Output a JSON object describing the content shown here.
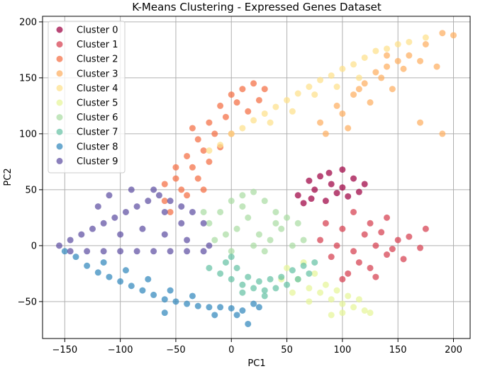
{
  "chart_data": {
    "type": "scatter",
    "title": "K-Means Clustering - Expressed Genes Dataset",
    "xlabel": "PC1",
    "ylabel": "PC2",
    "xlim": [
      -170,
      215
    ],
    "ylim": [
      -83,
      205
    ],
    "xticks": [
      -150,
      -100,
      -50,
      0,
      50,
      100,
      150,
      200
    ],
    "yticks": [
      -50,
      0,
      50,
      100,
      150,
      200
    ],
    "grid": true,
    "legend_position": "top-left",
    "series": [
      {
        "name": "Cluster 0",
        "color": "#9e0142",
        "points": [
          [
            60,
            45
          ],
          [
            75,
            50
          ],
          [
            90,
            55
          ],
          [
            100,
            52
          ],
          [
            110,
            60
          ],
          [
            85,
            40
          ],
          [
            70,
            58
          ],
          [
            95,
            47
          ],
          [
            105,
            44
          ],
          [
            80,
            62
          ],
          [
            65,
            38
          ],
          [
            115,
            48
          ],
          [
            120,
            55
          ],
          [
            88,
            65
          ],
          [
            72,
            42
          ],
          [
            100,
            68
          ]
        ]
      },
      {
        "name": "Cluster 1",
        "color": "#d53e4f",
        "points": [
          [
            80,
            5
          ],
          [
            95,
            0
          ],
          [
            110,
            -5
          ],
          [
            120,
            10
          ],
          [
            130,
            0
          ],
          [
            140,
            -8
          ],
          [
            150,
            5
          ],
          [
            100,
            15
          ],
          [
            115,
            -15
          ],
          [
            125,
            20
          ],
          [
            135,
            12
          ],
          [
            145,
            -3
          ],
          [
            160,
            8
          ],
          [
            170,
            -2
          ],
          [
            105,
            -25
          ],
          [
            90,
            -10
          ],
          [
            125,
            -20
          ],
          [
            155,
            -12
          ],
          [
            175,
            15
          ],
          [
            140,
            25
          ],
          [
            110,
            30
          ],
          [
            85,
            20
          ],
          [
            130,
            -28
          ],
          [
            100,
            -30
          ]
        ]
      },
      {
        "name": "Cluster 2",
        "color": "#f46d43",
        "points": [
          [
            -60,
            40
          ],
          [
            -50,
            60
          ],
          [
            -40,
            80
          ],
          [
            -30,
            95
          ],
          [
            -20,
            110
          ],
          [
            -10,
            125
          ],
          [
            0,
            135
          ],
          [
            10,
            140
          ],
          [
            20,
            145
          ],
          [
            -45,
            50
          ],
          [
            -35,
            70
          ],
          [
            -25,
            85
          ],
          [
            -15,
            100
          ],
          [
            -5,
            115
          ],
          [
            5,
            128
          ],
          [
            -55,
            30
          ],
          [
            -40,
            45
          ],
          [
            -30,
            60
          ],
          [
            -20,
            75
          ],
          [
            -10,
            88
          ],
          [
            0,
            100
          ],
          [
            15,
            120
          ],
          [
            25,
            130
          ],
          [
            -50,
            70
          ],
          [
            -60,
            55
          ],
          [
            -35,
            105
          ],
          [
            30,
            140
          ],
          [
            -25,
            50
          ]
        ]
      },
      {
        "name": "Cluster 3",
        "color": "#fdae61",
        "points": [
          [
            80,
            110
          ],
          [
            95,
            125
          ],
          [
            110,
            135
          ],
          [
            120,
            145
          ],
          [
            130,
            155
          ],
          [
            140,
            160
          ],
          [
            150,
            165
          ],
          [
            160,
            170
          ],
          [
            175,
            180
          ],
          [
            190,
            190
          ],
          [
            200,
            188
          ],
          [
            100,
            118
          ],
          [
            115,
            140
          ],
          [
            125,
            128
          ],
          [
            135,
            150
          ],
          [
            145,
            140
          ],
          [
            155,
            158
          ],
          [
            170,
            165
          ],
          [
            85,
            100
          ],
          [
            105,
            105
          ],
          [
            140,
            170
          ],
          [
            185,
            160
          ],
          [
            190,
            100
          ],
          [
            170,
            110
          ]
        ]
      },
      {
        "name": "Cluster 4",
        "color": "#fee08b",
        "points": [
          [
            -20,
            85
          ],
          [
            -10,
            90
          ],
          [
            0,
            100
          ],
          [
            10,
            105
          ],
          [
            20,
            112
          ],
          [
            30,
            118
          ],
          [
            40,
            124
          ],
          [
            50,
            130
          ],
          [
            60,
            136
          ],
          [
            70,
            142
          ],
          [
            80,
            148
          ],
          [
            90,
            152
          ],
          [
            100,
            158
          ],
          [
            110,
            162
          ],
          [
            120,
            168
          ],
          [
            130,
            174
          ],
          [
            140,
            176
          ],
          [
            150,
            180
          ],
          [
            160,
            182
          ],
          [
            175,
            186
          ],
          [
            55,
            120
          ],
          [
            75,
            135
          ],
          [
            95,
            142
          ],
          [
            115,
            150
          ],
          [
            35,
            110
          ]
        ]
      },
      {
        "name": "Cluster 5",
        "color": "#e6f598",
        "points": [
          [
            50,
            -20
          ],
          [
            60,
            -30
          ],
          [
            70,
            -38
          ],
          [
            80,
            -42
          ],
          [
            90,
            -48
          ],
          [
            100,
            -52
          ],
          [
            110,
            -55
          ],
          [
            120,
            -58
          ],
          [
            75,
            -25
          ],
          [
            85,
            -35
          ],
          [
            95,
            -40
          ],
          [
            105,
            -45
          ],
          [
            65,
            -15
          ],
          [
            115,
            -48
          ],
          [
            125,
            -60
          ],
          [
            70,
            -50
          ],
          [
            90,
            -62
          ],
          [
            55,
            -42
          ],
          [
            45,
            -30
          ],
          [
            100,
            -60
          ]
        ]
      },
      {
        "name": "Cluster 6",
        "color": "#abdda4",
        "points": [
          [
            -20,
            20
          ],
          [
            -10,
            30
          ],
          [
            0,
            40
          ],
          [
            10,
            45
          ],
          [
            20,
            48
          ],
          [
            30,
            40
          ],
          [
            40,
            30
          ],
          [
            50,
            25
          ],
          [
            60,
            20
          ],
          [
            -5,
            10
          ],
          [
            5,
            15
          ],
          [
            15,
            25
          ],
          [
            25,
            10
          ],
          [
            35,
            5
          ],
          [
            45,
            15
          ],
          [
            55,
            0
          ],
          [
            65,
            5
          ],
          [
            0,
            -5
          ],
          [
            -15,
            5
          ],
          [
            20,
            0
          ],
          [
            30,
            -5
          ],
          [
            40,
            20
          ],
          [
            10,
            35
          ],
          [
            -25,
            30
          ]
        ]
      },
      {
        "name": "Cluster 7",
        "color": "#66c2a5",
        "points": [
          [
            -20,
            -20
          ],
          [
            -10,
            -25
          ],
          [
            0,
            -30
          ],
          [
            10,
            -35
          ],
          [
            20,
            -38
          ],
          [
            30,
            -40
          ],
          [
            40,
            -38
          ],
          [
            50,
            -35
          ],
          [
            60,
            -30
          ],
          [
            70,
            -25
          ],
          [
            -5,
            -15
          ],
          [
            5,
            -20
          ],
          [
            15,
            -28
          ],
          [
            25,
            -32
          ],
          [
            35,
            -30
          ],
          [
            45,
            -28
          ],
          [
            55,
            -22
          ],
          [
            65,
            -18
          ],
          [
            75,
            -15
          ],
          [
            10,
            -42
          ],
          [
            30,
            -45
          ],
          [
            0,
            -10
          ]
        ]
      },
      {
        "name": "Cluster 8",
        "color": "#3288bd",
        "points": [
          [
            -150,
            -5
          ],
          [
            -140,
            -10
          ],
          [
            -130,
            -18
          ],
          [
            -120,
            -24
          ],
          [
            -110,
            -28
          ],
          [
            -100,
            -32
          ],
          [
            -90,
            -36
          ],
          [
            -80,
            -40
          ],
          [
            -70,
            -44
          ],
          [
            -60,
            -48
          ],
          [
            -50,
            -50
          ],
          [
            -40,
            -52
          ],
          [
            -30,
            -54
          ],
          [
            -20,
            -55
          ],
          [
            -10,
            -55
          ],
          [
            0,
            -56
          ],
          [
            10,
            -58
          ],
          [
            20,
            -52
          ],
          [
            -55,
            -40
          ],
          [
            -75,
            -30
          ],
          [
            -95,
            -22
          ],
          [
            -115,
            -15
          ],
          [
            -35,
            -45
          ],
          [
            -15,
            -62
          ],
          [
            5,
            -62
          ],
          [
            15,
            -70
          ],
          [
            -60,
            -60
          ],
          [
            25,
            -55
          ]
        ]
      },
      {
        "name": "Cluster 9",
        "color": "#5e4fa2",
        "points": [
          [
            -155,
            0
          ],
          [
            -145,
            5
          ],
          [
            -135,
            10
          ],
          [
            -125,
            15
          ],
          [
            -115,
            20
          ],
          [
            -105,
            25
          ],
          [
            -95,
            30
          ],
          [
            -85,
            35
          ],
          [
            -75,
            40
          ],
          [
            -65,
            45
          ],
          [
            -55,
            40
          ],
          [
            -45,
            35
          ],
          [
            -35,
            30
          ],
          [
            -25,
            20
          ],
          [
            -145,
            -5
          ],
          [
            -130,
            -5
          ],
          [
            -115,
            -5
          ],
          [
            -100,
            -5
          ],
          [
            -85,
            -5
          ],
          [
            -70,
            -5
          ],
          [
            -55,
            -5
          ],
          [
            -40,
            -5
          ],
          [
            -25,
            -5
          ],
          [
            -110,
            45
          ],
          [
            -90,
            50
          ],
          [
            -70,
            50
          ],
          [
            -60,
            30
          ],
          [
            -45,
            20
          ],
          [
            -120,
            35
          ],
          [
            -100,
            10
          ],
          [
            -80,
            15
          ],
          [
            -60,
            10
          ],
          [
            -40,
            5
          ],
          [
            -20,
            0
          ]
        ]
      }
    ]
  }
}
